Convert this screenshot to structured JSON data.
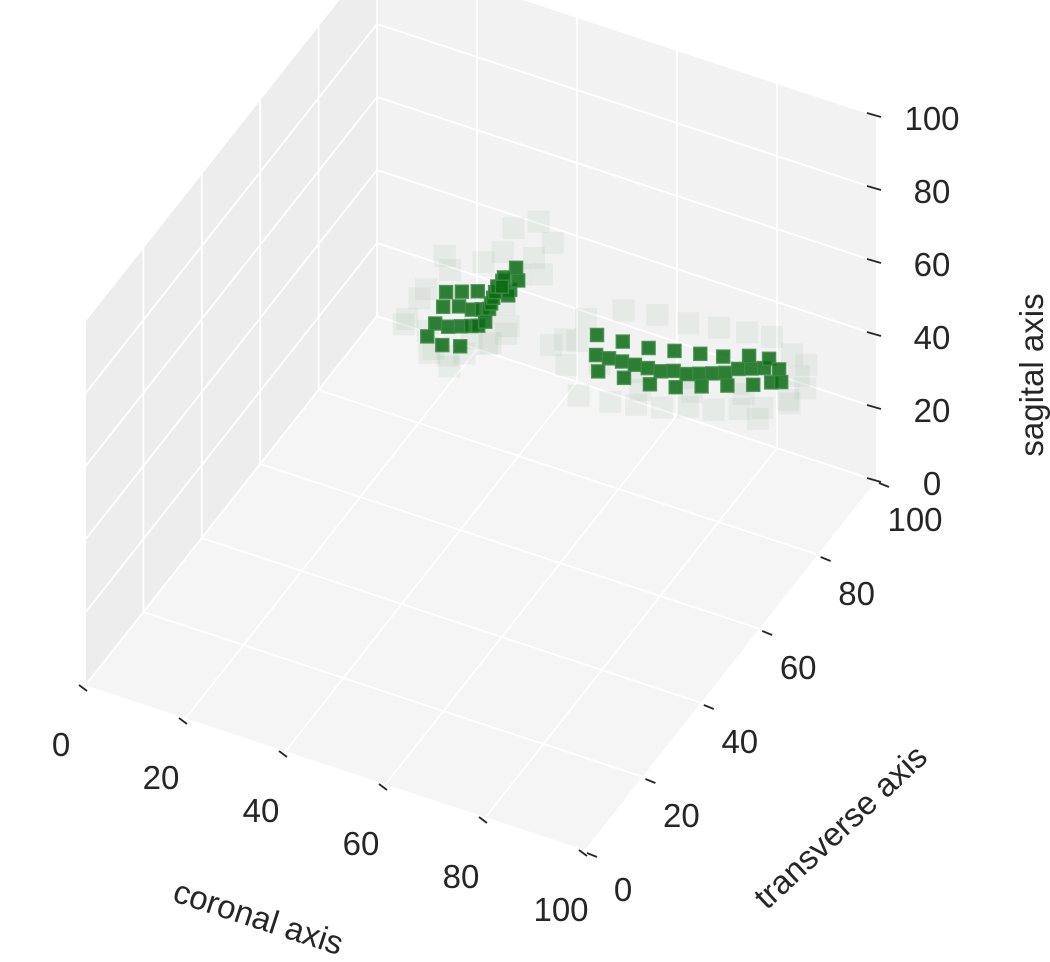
{
  "chart_data": {
    "type": "scatter",
    "title": "",
    "projection": "3d",
    "xlabel": "coronal axis",
    "ylabel": "transverse axis",
    "zlabel": "sagital axis",
    "xlim": [
      0,
      100
    ],
    "ylim": [
      0,
      100
    ],
    "zlim": [
      0,
      100
    ],
    "xticks": [
      "0",
      "20",
      "40",
      "60",
      "80",
      "100"
    ],
    "yticks": [
      "0",
      "20",
      "40",
      "60",
      "80",
      "100"
    ],
    "zticks": [
      "0",
      "20",
      "40",
      "60",
      "80",
      "100"
    ],
    "grid": true,
    "pane_color": "#f2f2f2",
    "marker": "square",
    "series": [
      {
        "color": "#0b6b14",
        "opacity": 0.85,
        "points": [
          [
            29,
            73,
            43
          ],
          [
            31,
            75,
            42
          ],
          [
            33,
            76,
            41
          ],
          [
            35,
            76,
            42
          ],
          [
            37,
            75,
            44
          ],
          [
            38,
            74,
            47
          ],
          [
            39,
            73,
            50
          ],
          [
            40,
            72,
            53
          ],
          [
            41,
            71,
            56
          ],
          [
            42,
            71,
            58
          ],
          [
            43,
            72,
            55
          ],
          [
            42,
            73,
            52
          ],
          [
            28,
            72,
            39
          ],
          [
            30,
            73,
            38
          ],
          [
            32,
            74,
            38
          ],
          [
            34,
            74,
            39
          ],
          [
            36,
            73,
            41
          ],
          [
            38,
            72,
            44
          ],
          [
            27,
            71,
            36
          ],
          [
            30,
            71,
            35
          ],
          [
            33,
            72,
            35
          ],
          [
            29,
            74,
            46
          ],
          [
            31,
            76,
            45
          ],
          [
            33,
            78,
            44
          ],
          [
            44,
            73,
            57
          ],
          [
            43,
            74,
            59
          ],
          [
            40,
            75,
            54
          ],
          [
            39,
            76,
            50
          ],
          [
            52,
            86,
            27
          ],
          [
            54,
            87,
            26
          ],
          [
            56,
            88,
            25
          ],
          [
            58,
            89,
            24
          ],
          [
            60,
            90,
            23
          ],
          [
            62,
            91,
            22
          ],
          [
            64,
            92,
            22
          ],
          [
            66,
            93,
            21
          ],
          [
            68,
            94,
            21
          ],
          [
            70,
            95,
            21
          ],
          [
            72,
            96,
            21
          ],
          [
            74,
            97,
            22
          ],
          [
            76,
            98,
            22
          ],
          [
            78,
            99,
            22
          ],
          [
            53,
            85,
            24
          ],
          [
            57,
            87,
            22
          ],
          [
            61,
            89,
            20
          ],
          [
            65,
            91,
            19
          ],
          [
            69,
            93,
            19
          ],
          [
            73,
            95,
            19
          ],
          [
            77,
            97,
            19
          ],
          [
            80,
            98,
            20
          ],
          [
            51,
            88,
            30
          ],
          [
            55,
            90,
            28
          ],
          [
            59,
            92,
            26
          ],
          [
            63,
            94,
            25
          ],
          [
            67,
            96,
            24
          ],
          [
            71,
            97,
            24
          ],
          [
            75,
            99,
            24
          ],
          [
            79,
            99,
            25
          ],
          [
            81,
            99,
            23
          ],
          [
            82,
            98,
            21
          ]
        ]
      },
      {
        "color": "#5f8f66",
        "opacity": 0.08,
        "points": [
          [
            24,
            68,
            41
          ],
          [
            26,
            70,
            47
          ],
          [
            28,
            70,
            33
          ],
          [
            30,
            68,
            37
          ],
          [
            32,
            70,
            31
          ],
          [
            35,
            70,
            36
          ],
          [
            37,
            69,
            42
          ],
          [
            40,
            69,
            48
          ],
          [
            43,
            70,
            53
          ],
          [
            45,
            72,
            60
          ],
          [
            46,
            75,
            62
          ],
          [
            38,
            78,
            57
          ],
          [
            33,
            80,
            50
          ],
          [
            27,
            77,
            52
          ],
          [
            25,
            74,
            45
          ],
          [
            36,
            76,
            33
          ],
          [
            41,
            74,
            40
          ],
          [
            47,
            76,
            57
          ],
          [
            48,
            78,
            64
          ],
          [
            44,
            80,
            66
          ],
          [
            49,
            81,
            28
          ],
          [
            50,
            83,
            33
          ],
          [
            52,
            80,
            22
          ],
          [
            56,
            84,
            18
          ],
          [
            60,
            86,
            17
          ],
          [
            64,
            88,
            16
          ],
          [
            68,
            90,
            16
          ],
          [
            72,
            92,
            15
          ],
          [
            76,
            94,
            15
          ],
          [
            80,
            95,
            16
          ],
          [
            84,
            97,
            18
          ],
          [
            85,
            99,
            23
          ],
          [
            83,
            100,
            27
          ],
          [
            79,
            100,
            30
          ],
          [
            74,
            100,
            29
          ],
          [
            69,
            99,
            29
          ],
          [
            64,
            97,
            30
          ],
          [
            59,
            95,
            32
          ],
          [
            54,
            92,
            34
          ],
          [
            50,
            86,
            36
          ],
          [
            58,
            90,
            21
          ],
          [
            66,
            94,
            19
          ],
          [
            74,
            97,
            18
          ],
          [
            86,
            94,
            21
          ],
          [
            87,
            98,
            28
          ],
          [
            62,
            84,
            24
          ],
          [
            70,
            88,
            23
          ],
          [
            78,
            92,
            22
          ],
          [
            55,
            82,
            30
          ],
          [
            47,
            84,
            31
          ],
          [
            30,
            66,
            44
          ],
          [
            34,
            66,
            39
          ],
          [
            42,
            67,
            45
          ],
          [
            23,
            71,
            39
          ],
          [
            39,
            80,
            62
          ],
          [
            31,
            72,
            55
          ],
          [
            45,
            68,
            50
          ],
          [
            50,
            74,
            41
          ],
          [
            82,
            90,
            19
          ],
          [
            88,
            96,
            24
          ]
        ]
      }
    ]
  }
}
